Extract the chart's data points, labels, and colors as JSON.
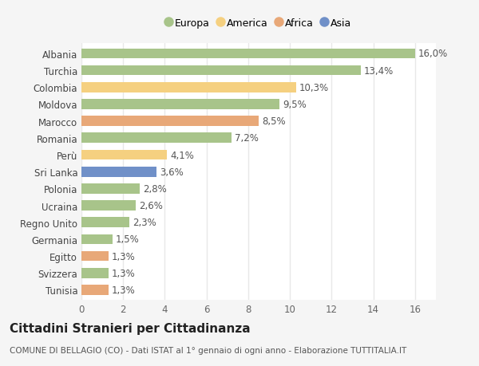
{
  "countries": [
    "Tunisia",
    "Svizzera",
    "Egitto",
    "Germania",
    "Regno Unito",
    "Ucraina",
    "Polonia",
    "Sri Lanka",
    "Perù",
    "Romania",
    "Marocco",
    "Moldova",
    "Colombia",
    "Turchia",
    "Albania"
  ],
  "values": [
    1.3,
    1.3,
    1.3,
    1.5,
    2.3,
    2.6,
    2.8,
    3.6,
    4.1,
    7.2,
    8.5,
    9.5,
    10.3,
    13.4,
    16.0
  ],
  "labels": [
    "1,3%",
    "1,3%",
    "1,3%",
    "1,5%",
    "2,3%",
    "2,6%",
    "2,8%",
    "3,6%",
    "4,1%",
    "7,2%",
    "8,5%",
    "9,5%",
    "10,3%",
    "13,4%",
    "16,0%"
  ],
  "continents": [
    "Africa",
    "Europa",
    "Africa",
    "Europa",
    "Europa",
    "Europa",
    "Europa",
    "Asia",
    "America",
    "Europa",
    "Africa",
    "Europa",
    "America",
    "Europa",
    "Europa"
  ],
  "colors": {
    "Europa": "#a8c48a",
    "America": "#f5d080",
    "Africa": "#e8a878",
    "Asia": "#7090c8"
  },
  "legend_order": [
    "Europa",
    "America",
    "Africa",
    "Asia"
  ],
  "legend_colors": [
    "#a8c48a",
    "#f5d080",
    "#e8a878",
    "#7090c8"
  ],
  "xlim": [
    0,
    17
  ],
  "xticks": [
    0,
    2,
    4,
    6,
    8,
    10,
    12,
    14,
    16
  ],
  "title": "Cittadini Stranieri per Cittadinanza",
  "subtitle": "COMUNE DI BELLAGIO (CO) - Dati ISTAT al 1° gennaio di ogni anno - Elaborazione TUTTITALIA.IT",
  "fig_bg_color": "#f5f5f5",
  "plot_bg_color": "#ffffff",
  "grid_color": "#e8e8e8",
  "bar_height": 0.6,
  "label_fontsize": 8.5,
  "ytick_fontsize": 8.5,
  "xtick_fontsize": 8.5,
  "title_fontsize": 11,
  "subtitle_fontsize": 7.5
}
